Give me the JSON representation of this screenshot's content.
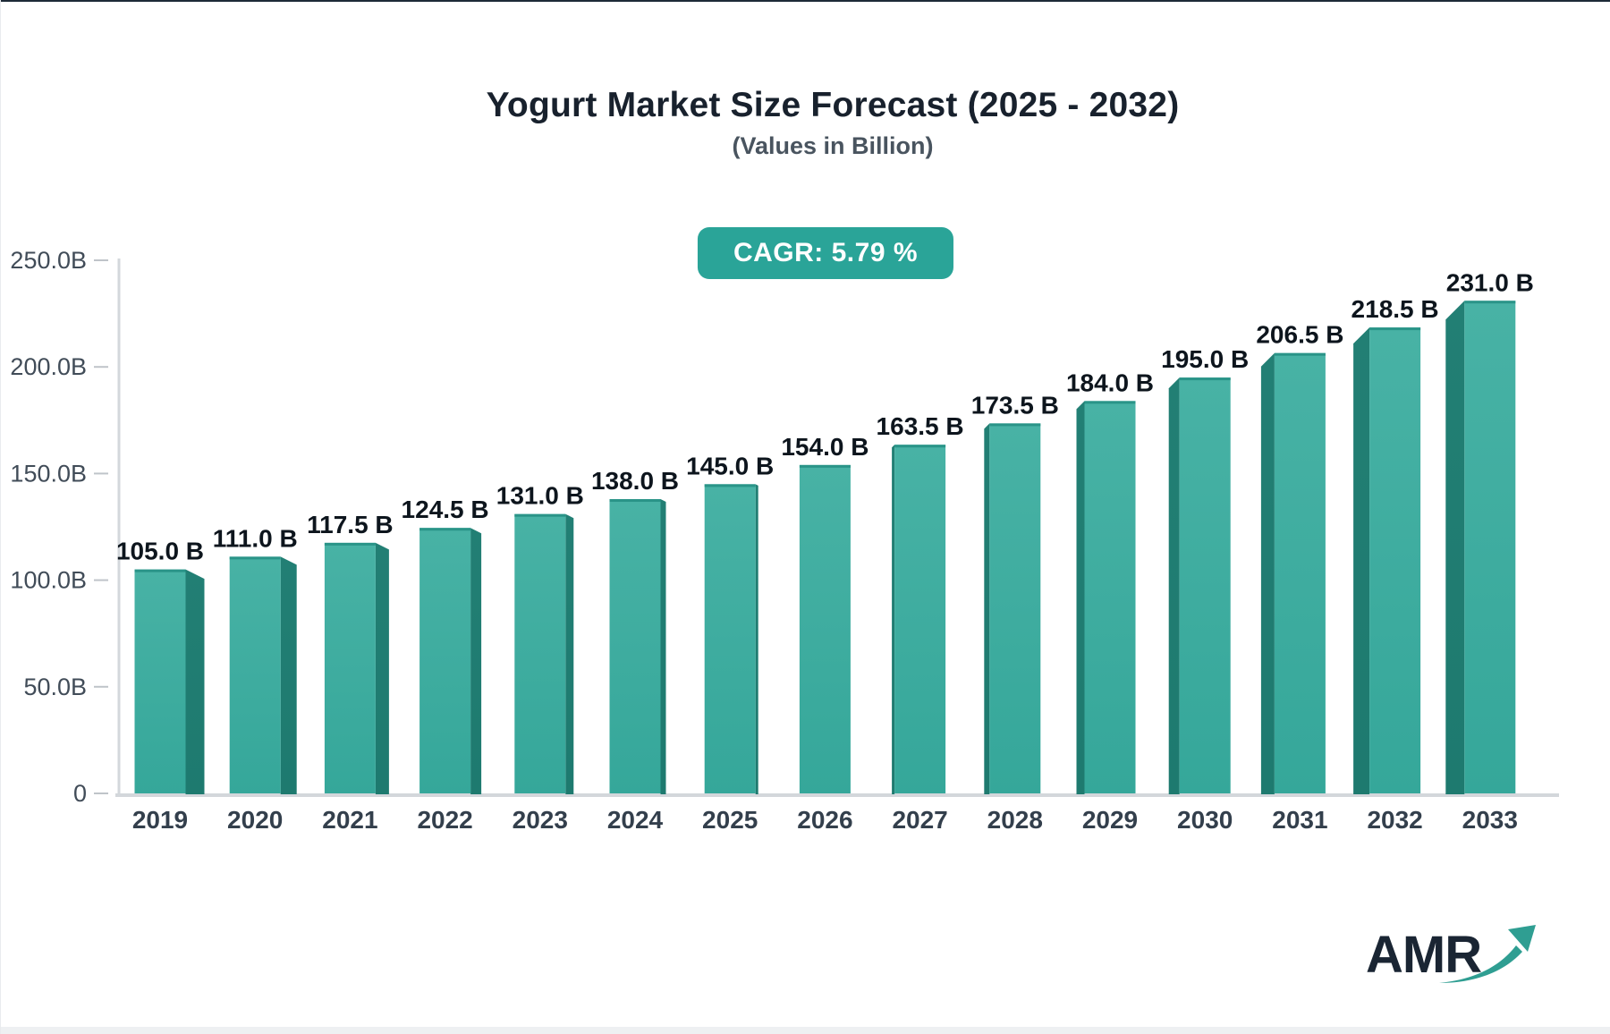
{
  "header": {
    "title": "Yogurt Market Size Forecast (2025 - 2032)",
    "subtitle": "(Values in Billion)",
    "cagr_label": "CAGR: 5.79 %"
  },
  "chart_data": {
    "type": "bar",
    "title": "Yogurt Market Size Forecast (2025 - 2032)",
    "subtitle": "(Values in Billion)",
    "unit": "Billion (B)",
    "categories": [
      "2019",
      "2020",
      "2021",
      "2022",
      "2023",
      "2024",
      "2025",
      "2026",
      "2027",
      "2028",
      "2029",
      "2030",
      "2031",
      "2032",
      "2033"
    ],
    "values": [
      105.0,
      111.0,
      117.5,
      124.5,
      131.0,
      138.0,
      145.0,
      154.0,
      163.5,
      173.5,
      184.0,
      195.0,
      206.5,
      218.5,
      231.0
    ],
    "bar_labels": [
      "105.0 B",
      "111.0 B",
      "117.5 B",
      "124.5 B",
      "131.0 B",
      "138.0 B",
      "145.0 B",
      "154.0 B",
      "163.5 B",
      "173.5 B",
      "184.0 B",
      "195.0 B",
      "206.5 B",
      "218.5 B",
      "231.0 B"
    ],
    "cagr": "5.79 %",
    "xlabel": "",
    "ylabel": "",
    "ylim": [
      0,
      250
    ],
    "ytick_step": 50,
    "ytick_labels": [
      "0",
      "50.0B",
      "100.0B",
      "150.0B",
      "200.0B",
      "250.0B"
    ],
    "grid": false,
    "legend": null,
    "style": "3d-extruded-bars, center vanishing point",
    "colors": {
      "bar_face_top": "#48b2a5",
      "bar_face_bottom": "#35a79a",
      "bar_side": "#1e7e73",
      "bar_top_edge": "#2a9488",
      "axis": "#d3d7db",
      "ytick_text": "#414c58",
      "xtick_text": "#333f4c",
      "value_text": "#0d151d",
      "badge_bg": "#2aa498",
      "badge_text": "#ffffff"
    }
  },
  "logo": {
    "text": "AMR",
    "text_color": "#1a2533",
    "arrow_color": "#2f9e92"
  }
}
